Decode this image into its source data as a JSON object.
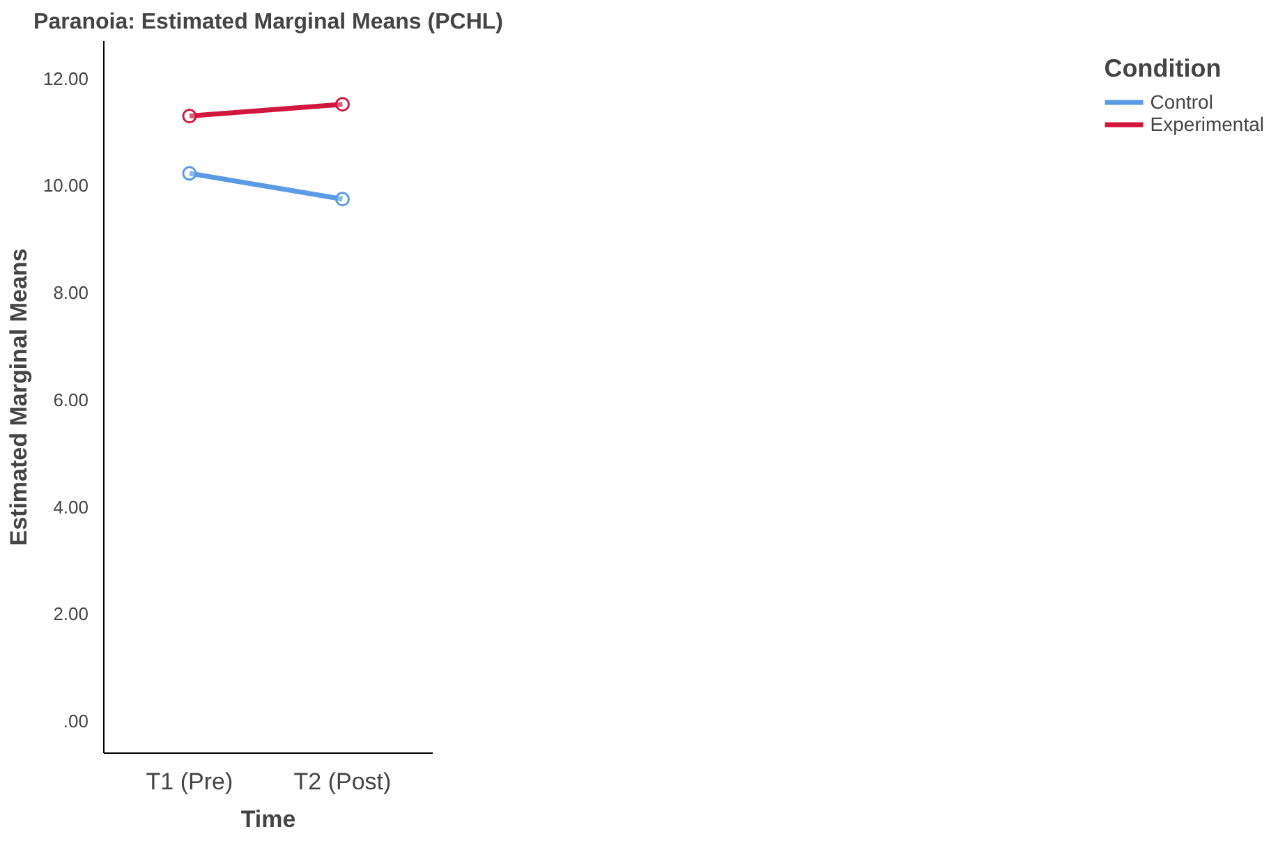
{
  "chart_data": {
    "type": "line",
    "title": "Paranoia: Estimated Marginal Means (PCHL)",
    "xlabel": "Time",
    "ylabel": "Estimated Marginal Means",
    "legend_title": "Condition",
    "categories": [
      "T1 (Pre)",
      "T2 (Post)"
    ],
    "series": [
      {
        "name": "Control",
        "color": "#5b9be6",
        "values": [
          10.23,
          9.75
        ]
      },
      {
        "name": "Experimental",
        "color": "#d2173f",
        "values": [
          11.3,
          11.52
        ]
      }
    ],
    "ylim": [
      -0.6,
      12.7
    ],
    "yticks": [
      {
        "value": 0,
        "label": ".00"
      },
      {
        "value": 2,
        "label": "2.00"
      },
      {
        "value": 4,
        "label": "4.00"
      },
      {
        "value": 6,
        "label": "6.00"
      },
      {
        "value": 8,
        "label": "8.00"
      },
      {
        "value": 10,
        "label": "10.00"
      },
      {
        "value": 12,
        "label": "12.00"
      }
    ],
    "grid": false,
    "legend": "top right",
    "marker": "circle",
    "line_style": "solid"
  }
}
